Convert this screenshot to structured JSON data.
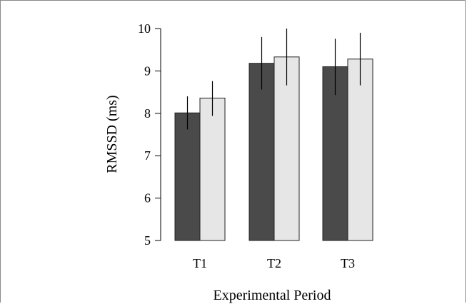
{
  "chart_data": {
    "type": "bar",
    "xlabel": "Experimental Period",
    "ylabel": "RMSSD (ms)",
    "ylim": [
      5,
      10
    ],
    "yticks": [
      5,
      6,
      7,
      8,
      9,
      10
    ],
    "categories": [
      "T1",
      "T2",
      "T3"
    ],
    "series": [
      {
        "color": "#4a4a4a",
        "values": [
          8.01,
          9.18,
          9.1
        ],
        "error_low": [
          7.62,
          8.56,
          8.43
        ],
        "error_high": [
          8.4,
          9.8,
          9.76
        ]
      },
      {
        "color": "#e6e6e6",
        "values": [
          8.36,
          9.33,
          9.28
        ],
        "error_low": [
          7.94,
          8.66,
          8.66
        ],
        "error_high": [
          8.76,
          10.0,
          9.9
        ]
      }
    ],
    "legend": "none",
    "grid": false
  }
}
